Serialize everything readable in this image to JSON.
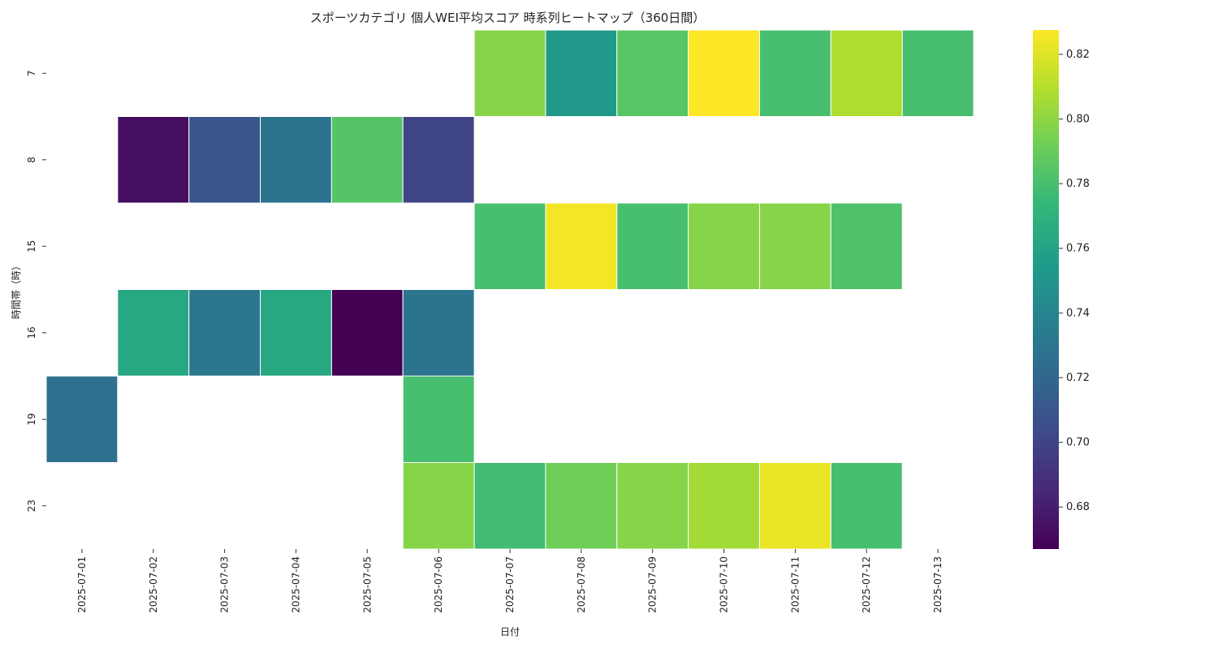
{
  "chart_data": {
    "type": "heatmap",
    "title": "スポーツカテゴリ 個人WEI平均スコア 時系列ヒートマップ（360日間）",
    "xlabel": "日付",
    "ylabel": "時間帯（時）",
    "x": [
      "2025-07-01",
      "2025-07-02",
      "2025-07-03",
      "2025-07-04",
      "2025-07-05",
      "2025-07-06",
      "2025-07-07",
      "2025-07-08",
      "2025-07-09",
      "2025-07-10",
      "2025-07-11",
      "2025-07-12",
      "2025-07-13"
    ],
    "y": [
      "7",
      "8",
      "15",
      "16",
      "19",
      "23"
    ],
    "values": [
      [
        null,
        null,
        null,
        null,
        null,
        null,
        0.798,
        0.753,
        0.785,
        0.827,
        0.78,
        0.808,
        0.78
      ],
      [
        null,
        0.673,
        0.71,
        0.728,
        0.784,
        0.7,
        null,
        null,
        null,
        null,
        null,
        null,
        null
      ],
      [
        null,
        null,
        null,
        null,
        null,
        null,
        0.78,
        0.825,
        0.78,
        0.798,
        0.798,
        0.782,
        null
      ],
      [
        null,
        0.763,
        0.731,
        0.763,
        0.667,
        0.728,
        null,
        null,
        null,
        null,
        null,
        null,
        null
      ],
      [
        0.727,
        null,
        null,
        null,
        null,
        0.78,
        null,
        null,
        null,
        null,
        null,
        null,
        null
      ],
      [
        null,
        null,
        null,
        null,
        null,
        0.798,
        0.778,
        0.792,
        0.798,
        0.805,
        0.823,
        0.78,
        null
      ]
    ],
    "colorbar": {
      "min": 0.667,
      "max": 0.8275,
      "ticks": [
        0.68,
        0.7,
        0.72,
        0.74,
        0.76,
        0.78,
        0.8,
        0.82
      ],
      "tick_labels": [
        "0.68",
        "0.70",
        "0.72",
        "0.74",
        "0.76",
        "0.78",
        "0.80",
        "0.82"
      ],
      "colormap": "viridis"
    },
    "grid": false,
    "cell_border_color": "#ffffff"
  }
}
